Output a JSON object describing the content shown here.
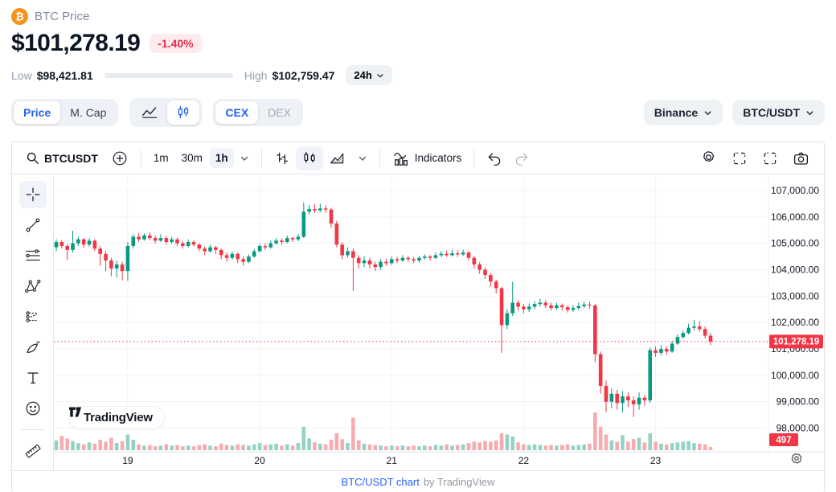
{
  "header": {
    "coin_label": "BTC Price",
    "price": "$101,278.19",
    "change": "-1.40%",
    "low_label": "Low",
    "low_value": "$98,421.81",
    "high_label": "High",
    "high_value": "$102,759.47",
    "range_fill_pct": 66,
    "period": "24h"
  },
  "controls": {
    "price_tab": "Price",
    "mcap_tab": "M. Cap",
    "cex_tab": "CEX",
    "dex_tab": "DEX",
    "exchange": "Binance",
    "pair": "BTC/USDT"
  },
  "toolbar": {
    "symbol": "BTCUSDT",
    "intervals": [
      "1m",
      "30m",
      "1h"
    ],
    "active_interval": "1h",
    "indicators_label": "Indicators"
  },
  "sidebar": {
    "tools": [
      {
        "name": "crosshair-tool-icon",
        "active": true
      },
      {
        "name": "trend-line-tool-icon"
      },
      {
        "name": "horizontal-lines-tool-icon"
      },
      {
        "name": "xabcd-pattern-tool-icon"
      },
      {
        "name": "projection-tool-icon"
      },
      {
        "name": "brush-tool-icon"
      },
      {
        "name": "text-tool-icon"
      },
      {
        "name": "emoji-tool-icon"
      },
      {
        "name": "ruler-tool-icon",
        "divider_before": true
      }
    ]
  },
  "watermark": "TradingView",
  "footer": {
    "link": "BTC/USDT chart",
    "byline": "by TradingView"
  },
  "colors": {
    "up": "#089981",
    "down": "#f23645",
    "up_volume": "#94d2c5",
    "down_volume": "#f6abb1",
    "price_line": "#f23645",
    "grid": "#f0f3f7",
    "axis_text": "#131722",
    "accent_blue": "#2563eb",
    "link_blue": "#2962ff",
    "bitcoin_orange": "#f7931a",
    "change_red": "#e12d4b"
  },
  "chart_data": {
    "type": "candlestick",
    "symbol": "BTC/USDT",
    "interval": "1h",
    "y_axis": {
      "min": 98000,
      "max": 107000,
      "ticks": [
        {
          "label": "107,000.00",
          "value": 107000
        },
        {
          "label": "106,000.00",
          "value": 106000
        },
        {
          "label": "105,000.00",
          "value": 105000
        },
        {
          "label": "104,000.00",
          "value": 104000
        },
        {
          "label": "103,000.00",
          "value": 103000
        },
        {
          "label": "102,000.00",
          "value": 102000
        },
        {
          "label": "101,000.00",
          "value": 101000
        },
        {
          "label": "100,000.00",
          "value": 100000
        },
        {
          "label": "99,000.00",
          "value": 99000
        },
        {
          "label": "98,000.00",
          "value": 98000
        }
      ]
    },
    "x_axis": {
      "ticks": [
        {
          "label": "19",
          "index": 13
        },
        {
          "label": "20",
          "index": 37
        },
        {
          "label": "21",
          "index": 61
        },
        {
          "label": "22",
          "index": 85
        },
        {
          "label": "23",
          "index": 109
        }
      ]
    },
    "price_line": {
      "value": 101278.19,
      "label": "101,278.19"
    },
    "volume_badge": "497",
    "max_volume": 5800,
    "candles": [
      [
        104850,
        105150,
        104700,
        105050,
        1500
      ],
      [
        105050,
        105120,
        104800,
        104900,
        2200
      ],
      [
        104900,
        104980,
        104380,
        104750,
        1800
      ],
      [
        104750,
        105480,
        104650,
        105000,
        1400
      ],
      [
        105000,
        105250,
        104900,
        105150,
        1100
      ],
      [
        105150,
        105200,
        104820,
        104950,
        900
      ],
      [
        104950,
        105200,
        104880,
        105100,
        1200
      ],
      [
        105100,
        105150,
        104700,
        104800,
        1000
      ],
      [
        104800,
        104900,
        104150,
        104600,
        1600
      ],
      [
        104600,
        104700,
        103950,
        104350,
        1300
      ],
      [
        104350,
        104450,
        103750,
        104050,
        1900
      ],
      [
        104050,
        104350,
        103700,
        104200,
        1100
      ],
      [
        104200,
        104300,
        103600,
        103950,
        1400
      ],
      [
        103950,
        105050,
        103580,
        104900,
        2400
      ],
      [
        104900,
        105350,
        104800,
        105250,
        1600
      ],
      [
        105250,
        105400,
        105050,
        105150,
        900
      ],
      [
        105150,
        105380,
        105100,
        105300,
        700
      ],
      [
        105300,
        105420,
        105120,
        105200,
        800
      ],
      [
        105200,
        105300,
        105000,
        105100,
        600
      ],
      [
        105100,
        105350,
        105050,
        105200,
        700
      ],
      [
        105200,
        105280,
        104950,
        105050,
        900
      ],
      [
        105050,
        105250,
        104980,
        105150,
        700
      ],
      [
        105150,
        105220,
        104900,
        105000,
        800
      ],
      [
        105000,
        105080,
        104800,
        104900,
        600
      ],
      [
        104900,
        105150,
        104850,
        105050,
        700
      ],
      [
        105050,
        105120,
        104880,
        104950,
        600
      ],
      [
        104950,
        105000,
        104700,
        104800,
        800
      ],
      [
        104800,
        104880,
        104550,
        104700,
        900
      ],
      [
        104700,
        104950,
        104650,
        104850,
        700
      ],
      [
        104850,
        104900,
        104600,
        104750,
        600
      ],
      [
        104750,
        104800,
        104400,
        104550,
        1000
      ],
      [
        104550,
        104650,
        104300,
        104450,
        800
      ],
      [
        104450,
        104700,
        104380,
        104600,
        700
      ],
      [
        104600,
        104650,
        104250,
        104400,
        900
      ],
      [
        104400,
        104500,
        104150,
        104300,
        800
      ],
      [
        104300,
        104580,
        104250,
        104500,
        700
      ],
      [
        104500,
        104780,
        104450,
        104700,
        900
      ],
      [
        104700,
        104980,
        104650,
        104900,
        1100
      ],
      [
        104900,
        105000,
        104750,
        104850,
        800
      ],
      [
        104850,
        105100,
        104800,
        105000,
        900
      ],
      [
        105000,
        105200,
        104950,
        105100,
        1000
      ],
      [
        105100,
        105180,
        104950,
        105050,
        700
      ],
      [
        105050,
        105300,
        105000,
        105200,
        900
      ],
      [
        105200,
        105250,
        105050,
        105150,
        700
      ],
      [
        105150,
        105350,
        105080,
        105250,
        1100
      ],
      [
        105250,
        106550,
        105200,
        106200,
        3600
      ],
      [
        106200,
        106450,
        106100,
        106300,
        1800
      ],
      [
        106300,
        106480,
        106150,
        106250,
        1200
      ],
      [
        106250,
        106500,
        106180,
        106320,
        1000
      ],
      [
        106320,
        106450,
        106150,
        106280,
        900
      ],
      [
        106280,
        106350,
        105600,
        105750,
        1600
      ],
      [
        105750,
        105850,
        104850,
        104950,
        2600
      ],
      [
        104950,
        105050,
        104400,
        104550,
        1700
      ],
      [
        104550,
        104850,
        104450,
        104700,
        1100
      ],
      [
        104700,
        104800,
        103200,
        104450,
        5000
      ],
      [
        104450,
        104550,
        104050,
        104250,
        1500
      ],
      [
        104250,
        104500,
        104100,
        104350,
        1000
      ],
      [
        104350,
        104450,
        104050,
        104200,
        900
      ],
      [
        104200,
        104300,
        103950,
        104100,
        800
      ],
      [
        104100,
        104400,
        104000,
        104300,
        700
      ],
      [
        104300,
        104420,
        104150,
        104250,
        600
      ],
      [
        104250,
        104500,
        104180,
        104400,
        700
      ],
      [
        104400,
        104480,
        104250,
        104350,
        600
      ],
      [
        104350,
        104550,
        104300,
        104450,
        700
      ],
      [
        104450,
        104520,
        104300,
        104400,
        600
      ],
      [
        104400,
        104480,
        104250,
        104350,
        700
      ],
      [
        104350,
        104520,
        104280,
        104450,
        600
      ],
      [
        104450,
        104580,
        104380,
        104500,
        700
      ],
      [
        104500,
        104560,
        104350,
        104450,
        600
      ],
      [
        104450,
        104650,
        104400,
        104550,
        800
      ],
      [
        104550,
        104700,
        104480,
        104600,
        700
      ],
      [
        104600,
        104720,
        104480,
        104550,
        900
      ],
      [
        104550,
        104750,
        104500,
        104620,
        700
      ],
      [
        104620,
        104730,
        104480,
        104580,
        800
      ],
      [
        104580,
        104760,
        104520,
        104650,
        900
      ],
      [
        104650,
        104700,
        104350,
        104450,
        1100
      ],
      [
        104450,
        104500,
        104050,
        104200,
        1300
      ],
      [
        104200,
        104280,
        103850,
        104000,
        1200
      ],
      [
        104000,
        104080,
        103650,
        103800,
        1400
      ],
      [
        103800,
        103880,
        103350,
        103550,
        1300
      ],
      [
        103550,
        103620,
        103100,
        103300,
        1500
      ],
      [
        103300,
        103350,
        100850,
        101900,
        2600
      ],
      [
        101900,
        102500,
        101750,
        102350,
        2400
      ],
      [
        102350,
        103550,
        102250,
        102750,
        2100
      ],
      [
        102750,
        102850,
        102450,
        102600,
        1200
      ],
      [
        102600,
        102700,
        102350,
        102500,
        900
      ],
      [
        102500,
        102720,
        102400,
        102600,
        800
      ],
      [
        102600,
        102800,
        102500,
        102700,
        900
      ],
      [
        102700,
        102900,
        102600,
        102750,
        800
      ],
      [
        102750,
        102850,
        102550,
        102650,
        700
      ],
      [
        102650,
        102750,
        102450,
        102550,
        800
      ],
      [
        102550,
        102750,
        102480,
        102650,
        700
      ],
      [
        102650,
        102720,
        102460,
        102580,
        800
      ],
      [
        102580,
        102650,
        102380,
        102480,
        900
      ],
      [
        102480,
        102650,
        102400,
        102550,
        700
      ],
      [
        102550,
        102750,
        102480,
        102620,
        800
      ],
      [
        102620,
        102800,
        102550,
        102680,
        900
      ],
      [
        102680,
        102780,
        102520,
        102650,
        1000
      ],
      [
        102650,
        102700,
        100500,
        100800,
        5800
      ],
      [
        100800,
        100900,
        99300,
        99600,
        3600
      ],
      [
        99600,
        99800,
        98600,
        99000,
        2400
      ],
      [
        99000,
        99500,
        98750,
        99300,
        1500
      ],
      [
        99300,
        99450,
        98700,
        98950,
        1300
      ],
      [
        98950,
        99400,
        98600,
        99200,
        2300
      ],
      [
        99200,
        99350,
        98800,
        99050,
        1300
      ],
      [
        99050,
        99200,
        98420,
        98900,
        1700
      ],
      [
        98900,
        99350,
        98700,
        99150,
        1900
      ],
      [
        99150,
        99250,
        98850,
        99050,
        1200
      ],
      [
        99050,
        101050,
        98950,
        100950,
        2600
      ],
      [
        100950,
        101100,
        100700,
        100850,
        1300
      ],
      [
        100850,
        101150,
        100750,
        101000,
        1000
      ],
      [
        101000,
        101100,
        100780,
        100900,
        900
      ],
      [
        100900,
        101300,
        100850,
        101200,
        1100
      ],
      [
        101200,
        101550,
        101150,
        101450,
        1200
      ],
      [
        101450,
        101700,
        101380,
        101600,
        1300
      ],
      [
        101600,
        101950,
        101550,
        101800,
        1400
      ],
      [
        101800,
        102100,
        101700,
        101850,
        1100
      ],
      [
        101850,
        102050,
        101650,
        101750,
        1000
      ],
      [
        101750,
        101850,
        101400,
        101500,
        900
      ],
      [
        101500,
        101600,
        101150,
        101278.19,
        497
      ]
    ]
  }
}
